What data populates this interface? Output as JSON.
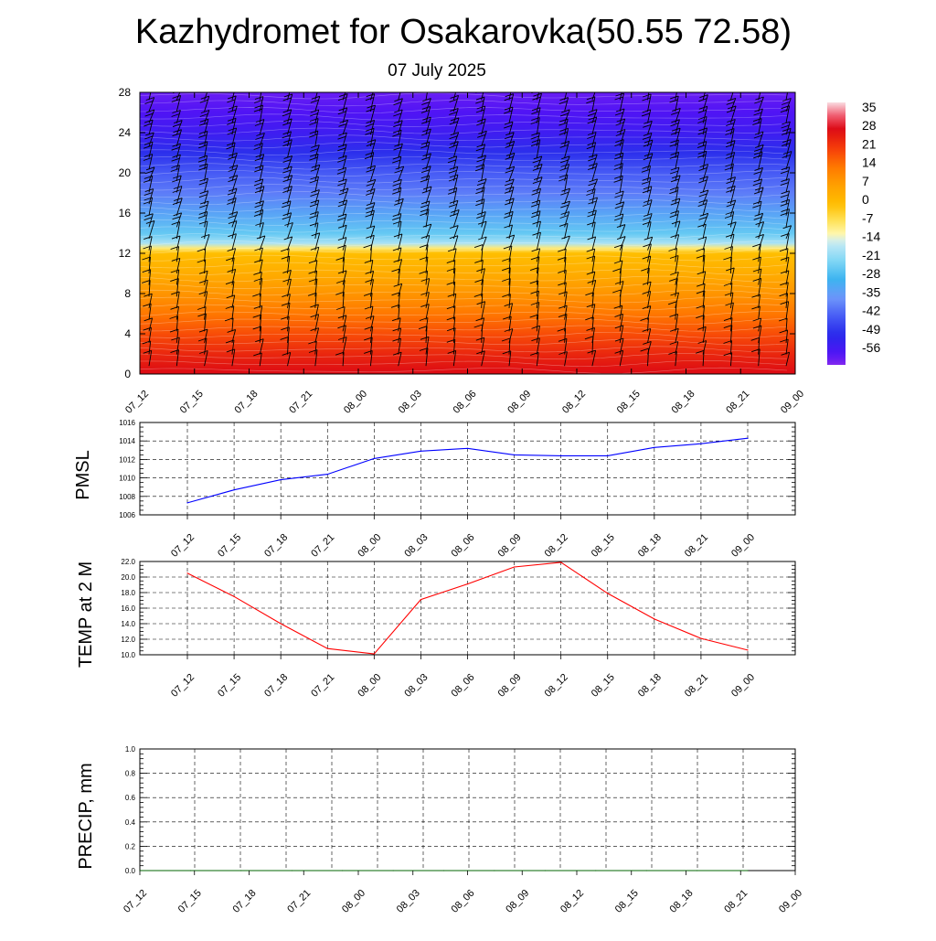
{
  "header": {
    "title": "Kazhydromet for Osakarovka(50.55 72.58)",
    "date": "07 July 2025"
  },
  "colors": {
    "pmsl_line": "#0000ff",
    "temp_line": "#ff0000",
    "precip_line": "#006400"
  },
  "chart_data": [
    {
      "type": "heatmap",
      "name": "vertical-temperature-cross-section",
      "x_ticks": [
        "07_12",
        "07_15",
        "07_18",
        "07_21",
        "08_00",
        "08_03",
        "08_06",
        "08_09",
        "08_12",
        "08_15",
        "08_18",
        "08_21",
        "09_00"
      ],
      "y_ticks": [
        0,
        4,
        8,
        12,
        16,
        20,
        24,
        28
      ],
      "ylim": [
        0,
        28
      ],
      "colorbar": {
        "labels": [
          "35",
          "28",
          "21",
          "14",
          "7",
          "0",
          "-7",
          "-14",
          "-21",
          "-28",
          "-35",
          "-42",
          "-49",
          "-56"
        ],
        "range": [
          -60,
          38
        ]
      },
      "temperature_profile": {
        "levels": [
          0,
          2,
          4,
          6,
          8,
          10,
          12,
          12.5,
          13,
          14,
          16,
          18,
          20,
          22,
          24,
          26,
          28
        ],
        "values": [
          28,
          24,
          19,
          14,
          9,
          4,
          0,
          -8,
          -17,
          -24,
          -32,
          -38,
          -42,
          -48,
          -53,
          -56,
          -58
        ]
      },
      "wind_barbs": true
    },
    {
      "type": "line",
      "name": "pmsl",
      "ylabel": "PMSL",
      "ylim": [
        1006,
        1016
      ],
      "y_ticks": [
        "1006",
        "1008",
        "1010",
        "1012",
        "1014",
        "1016"
      ],
      "x_ticks": [
        "07_12",
        "07_15",
        "07_18",
        "07_21",
        "08_00",
        "08_03",
        "08_06",
        "08_09",
        "08_12",
        "08_15",
        "08_18",
        "08_21",
        "09_00"
      ],
      "values": [
        1007.3,
        1008.7,
        1009.8,
        1010.4,
        1012.1,
        1012.9,
        1013.2,
        1012.5,
        1012.4,
        1012.4,
        1013.3,
        1013.7,
        1014.3
      ]
    },
    {
      "type": "line",
      "name": "temp-2m",
      "ylabel": "TEMP at 2 M",
      "ylim": [
        10,
        22
      ],
      "y_ticks": [
        "10.0",
        "12.0",
        "14.0",
        "16.0",
        "18.0",
        "20.0",
        "22.0"
      ],
      "x_ticks": [
        "07_12",
        "07_15",
        "07_18",
        "07_21",
        "08_00",
        "08_03",
        "08_06",
        "08_09",
        "08_12",
        "08_15",
        "08_18",
        "08_21",
        "09_00"
      ],
      "values": [
        20.5,
        17.5,
        14.0,
        10.8,
        10.1,
        17.1,
        19.1,
        21.3,
        21.9,
        17.9,
        14.6,
        12.1,
        10.6
      ]
    },
    {
      "type": "line",
      "name": "precip",
      "ylabel": "PRECIP, mm",
      "ylim": [
        0,
        1
      ],
      "y_ticks": [
        "0.0",
        "0.2",
        "0.4",
        "0.6",
        "0.8",
        "1.0"
      ],
      "x_ticks": [
        "07_12",
        "07_15",
        "07_18",
        "07_21",
        "08_00",
        "08_03",
        "08_06",
        "08_09",
        "08_12",
        "08_15",
        "08_18",
        "08_21",
        "09_00"
      ],
      "values": [
        0,
        0,
        0,
        0,
        0,
        0,
        0,
        0,
        0,
        0,
        0,
        0,
        0
      ]
    }
  ]
}
